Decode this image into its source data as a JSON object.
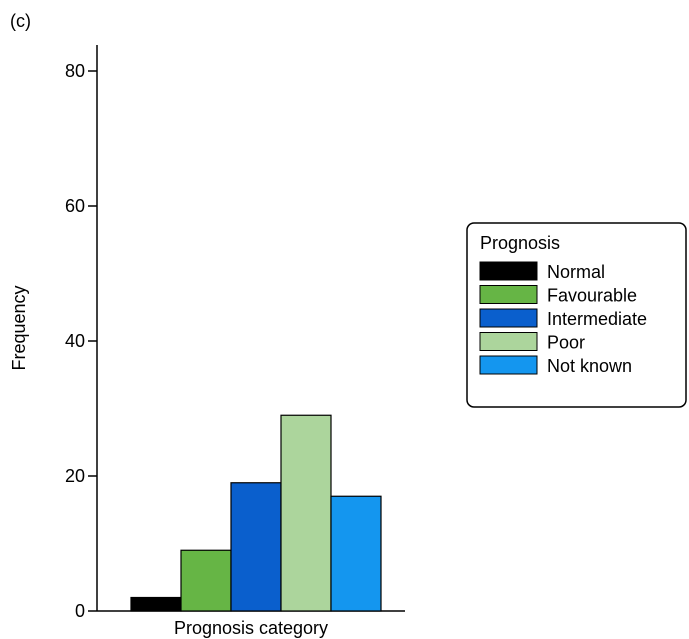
{
  "panel_label": "(c)",
  "chart_data": {
    "type": "bar",
    "title": "",
    "xlabel": "Prognosis category",
    "ylabel": "Frequency",
    "ylim": [
      0,
      85
    ],
    "yticks": [
      0,
      20,
      40,
      60,
      80
    ],
    "ytick_labels": [
      "0",
      "20",
      "40",
      "60",
      "80"
    ],
    "grid": false,
    "legend": {
      "title": "Prognosis",
      "placement": "right"
    },
    "series": [
      {
        "name": "Normal",
        "value": 2,
        "color": "#000000"
      },
      {
        "name": "Favourable",
        "value": 9,
        "color": "#66b545"
      },
      {
        "name": "Intermediate",
        "value": 19,
        "color": "#0a5fcd"
      },
      {
        "name": "Poor",
        "value": 29,
        "color": "#acd59c"
      },
      {
        "name": "Not known",
        "value": 17,
        "color": "#1496ef"
      }
    ]
  }
}
